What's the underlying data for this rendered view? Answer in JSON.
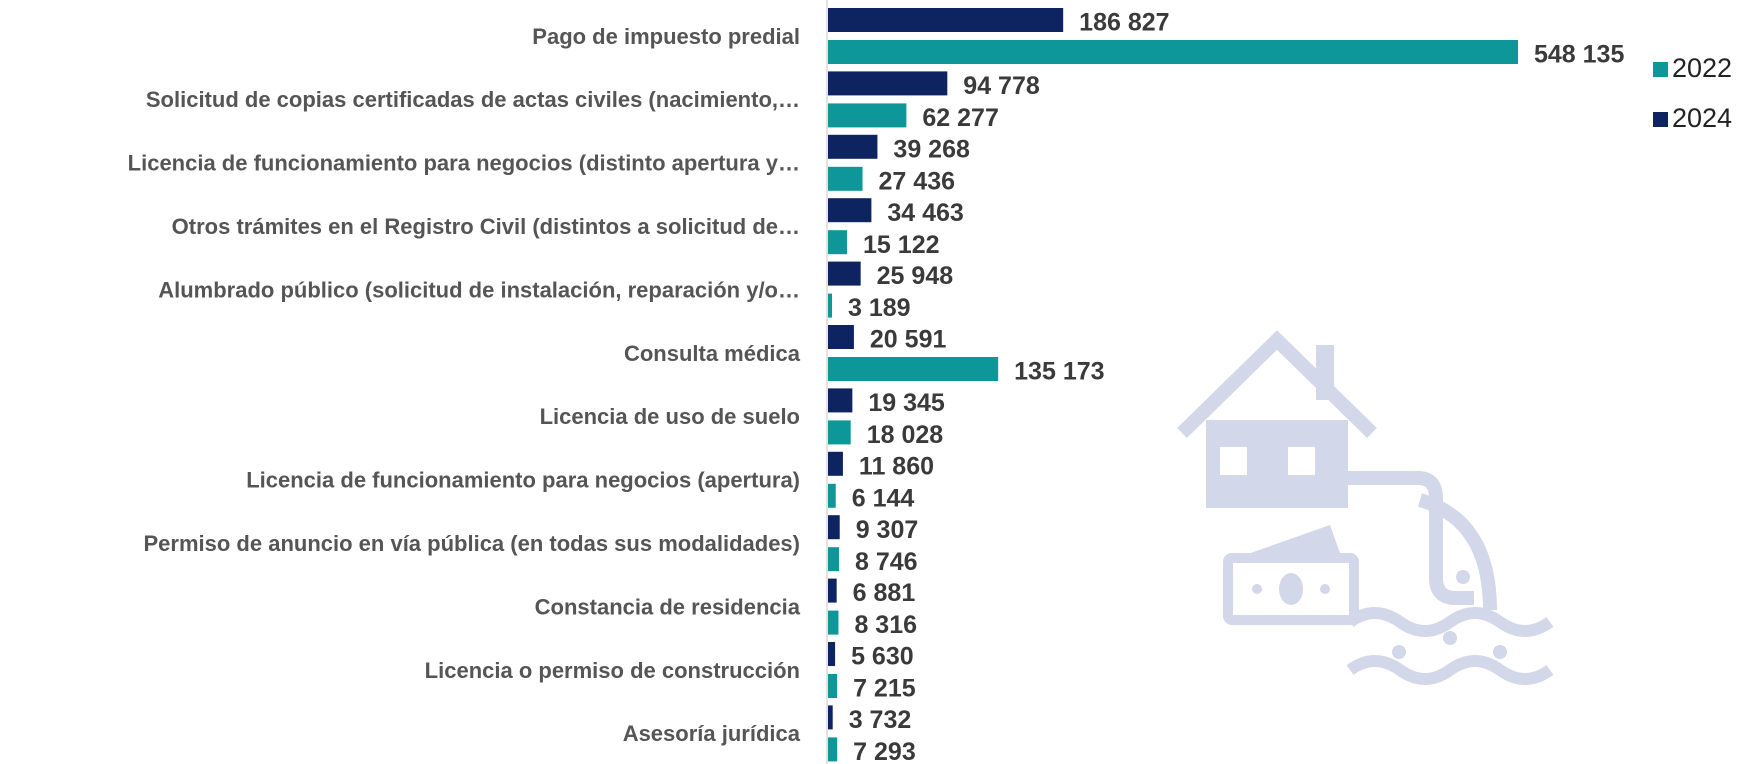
{
  "chart_data": {
    "type": "hbar",
    "categories": [
      "Pago de impuesto predial",
      "Solicitud de copias certificadas de actas civiles (nacimiento,…",
      "Licencia de funcionamiento para negocios (distinto  apertura y…",
      "Otros trámites en el Registro Civil (distintos a solicitud de…",
      "Alumbrado público (solicitud de instalación, reparación y/o…",
      "Consulta médica",
      "Licencia de uso de suelo",
      "Licencia de funcionamiento para negocios (apertura)",
      "Permiso de anuncio en vía pública (en todas sus modalidades)",
      "Constancia de residencia",
      "Licencia o permiso de construcción",
      "Asesoría jurídica"
    ],
    "series": [
      {
        "name": "2022",
        "color": "#0e9799",
        "values": [
          548135,
          62277,
          27436,
          15122,
          3189,
          135173,
          18028,
          6144,
          8746,
          8316,
          7215,
          7293
        ],
        "value_labels": [
          "548 135",
          "62 277",
          "27 436",
          "15 122",
          "3 189",
          "135 173",
          "18 028",
          "6 144",
          "8 746",
          "8 316",
          "7 215",
          "7 293"
        ]
      },
      {
        "name": "2024",
        "color": "#0d2461",
        "values": [
          186827,
          94778,
          39268,
          34463,
          25948,
          20591,
          19345,
          11860,
          9307,
          6881,
          5630,
          3732
        ],
        "value_labels": [
          "186 827",
          "94 778",
          "39 268",
          "34 463",
          "25 948",
          "20 591",
          "19 345",
          "11 860",
          "9 307",
          "6 881",
          "5 630",
          "3 732"
        ]
      }
    ],
    "legend": "right"
  }
}
